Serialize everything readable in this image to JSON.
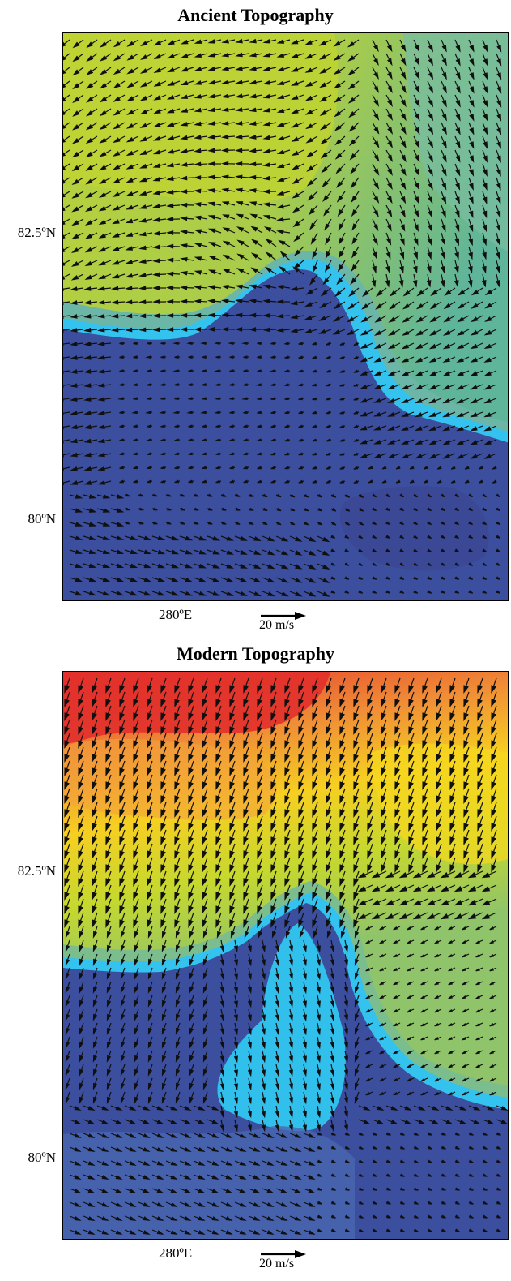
{
  "panels": [
    {
      "title": "Ancient Topography",
      "lat_ticks": [
        "82.5ºN",
        "80ºN"
      ],
      "lon_ticks": [
        "280ºE"
      ],
      "scale_vector": "20 m/s"
    },
    {
      "title": "Modern Topography",
      "lat_ticks": [
        "82.5ºN",
        "80ºN"
      ],
      "lon_ticks": [
        "280ºE"
      ],
      "scale_vector": "20 m/s"
    }
  ],
  "colors": {
    "low_blue": "#3b4fa0",
    "cyan": "#2ec4ee",
    "green": "#8dc46b",
    "yellow_green": "#bcd231",
    "yellow": "#f2d91c",
    "orange": "#f3a23a",
    "red": "#e3322a",
    "arrow": "#111111"
  }
}
